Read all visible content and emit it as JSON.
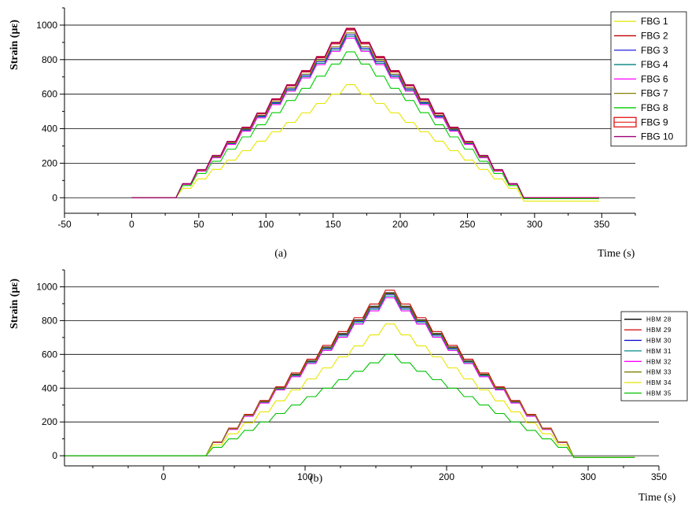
{
  "chart_data": [
    {
      "type": "line",
      "panel_label": "(a)",
      "xlabel": "Time (s)",
      "ylabel": "Strain (με)",
      "xlim": [
        -50,
        375
      ],
      "ylim": [
        -90,
        1100
      ],
      "xticks": [
        -50,
        0,
        50,
        100,
        150,
        200,
        250,
        300,
        350
      ],
      "yticks": [
        0,
        200,
        400,
        600,
        800,
        1000
      ],
      "grid": "horizontal",
      "legend": "top-right",
      "start_x": 0,
      "ramp_start": 33,
      "peak_x": 166,
      "ramp_end": 298,
      "end_x": 348,
      "series": [
        {
          "name": "FBG 1",
          "color": "#e6e600",
          "peak": 655,
          "tail": -20
        },
        {
          "name": "FBG 2",
          "color": "#c00000",
          "peak": 982,
          "tail": 0
        },
        {
          "name": "FBG 3",
          "color": "#2020e0",
          "peak": 945,
          "tail": 0
        },
        {
          "name": "FBG 4",
          "color": "#008080",
          "peak": 935,
          "tail": 0
        },
        {
          "name": "FBG 6",
          "color": "#ff00ff",
          "peak": 925,
          "tail": 0
        },
        {
          "name": "FBG 7",
          "color": "#808000",
          "peak": 955,
          "tail": 0
        },
        {
          "name": "FBG 8",
          "color": "#00cc00",
          "peak": 845,
          "tail": -5
        },
        {
          "name": "FBG 9",
          "color": "#e00000",
          "peak": 972,
          "tail": 0
        },
        {
          "name": "FBG 10",
          "color": "#a0007a",
          "peak": 978,
          "tail": 0
        }
      ]
    },
    {
      "type": "line",
      "panel_label": "(b)",
      "xlabel": "Time (s)",
      "ylabel": "Strain (με)",
      "xlim": [
        -70,
        350
      ],
      "ylim": [
        -60,
        1100
      ],
      "xticks": [
        0,
        100,
        200,
        300,
        350
      ],
      "yticks": [
        0,
        200,
        400,
        600,
        800,
        1000
      ],
      "grid": "horizontal",
      "legend": "right",
      "start_x": -70,
      "ramp_start": 30,
      "peak_x": 163,
      "ramp_end": 296,
      "end_x": 333,
      "series": [
        {
          "name": "HBM 28",
          "color": "#000000",
          "peak": 965,
          "tail": -10
        },
        {
          "name": "HBM 29",
          "color": "#d00000",
          "peak": 980,
          "tail": -10
        },
        {
          "name": "HBM 30",
          "color": "#0000d0",
          "peak": 955,
          "tail": -10
        },
        {
          "name": "HBM 31",
          "color": "#008b8b",
          "peak": 945,
          "tail": -10
        },
        {
          "name": "HBM 32",
          "color": "#ff00ff",
          "peak": 935,
          "tail": -10
        },
        {
          "name": "HBM 33",
          "color": "#808000",
          "peak": 960,
          "tail": -10
        },
        {
          "name": "HBM 34",
          "color": "#e6e600",
          "peak": 780,
          "tail": -10
        },
        {
          "name": "HBM 35",
          "color": "#00c000",
          "peak": 600,
          "tail": -10
        }
      ]
    }
  ]
}
